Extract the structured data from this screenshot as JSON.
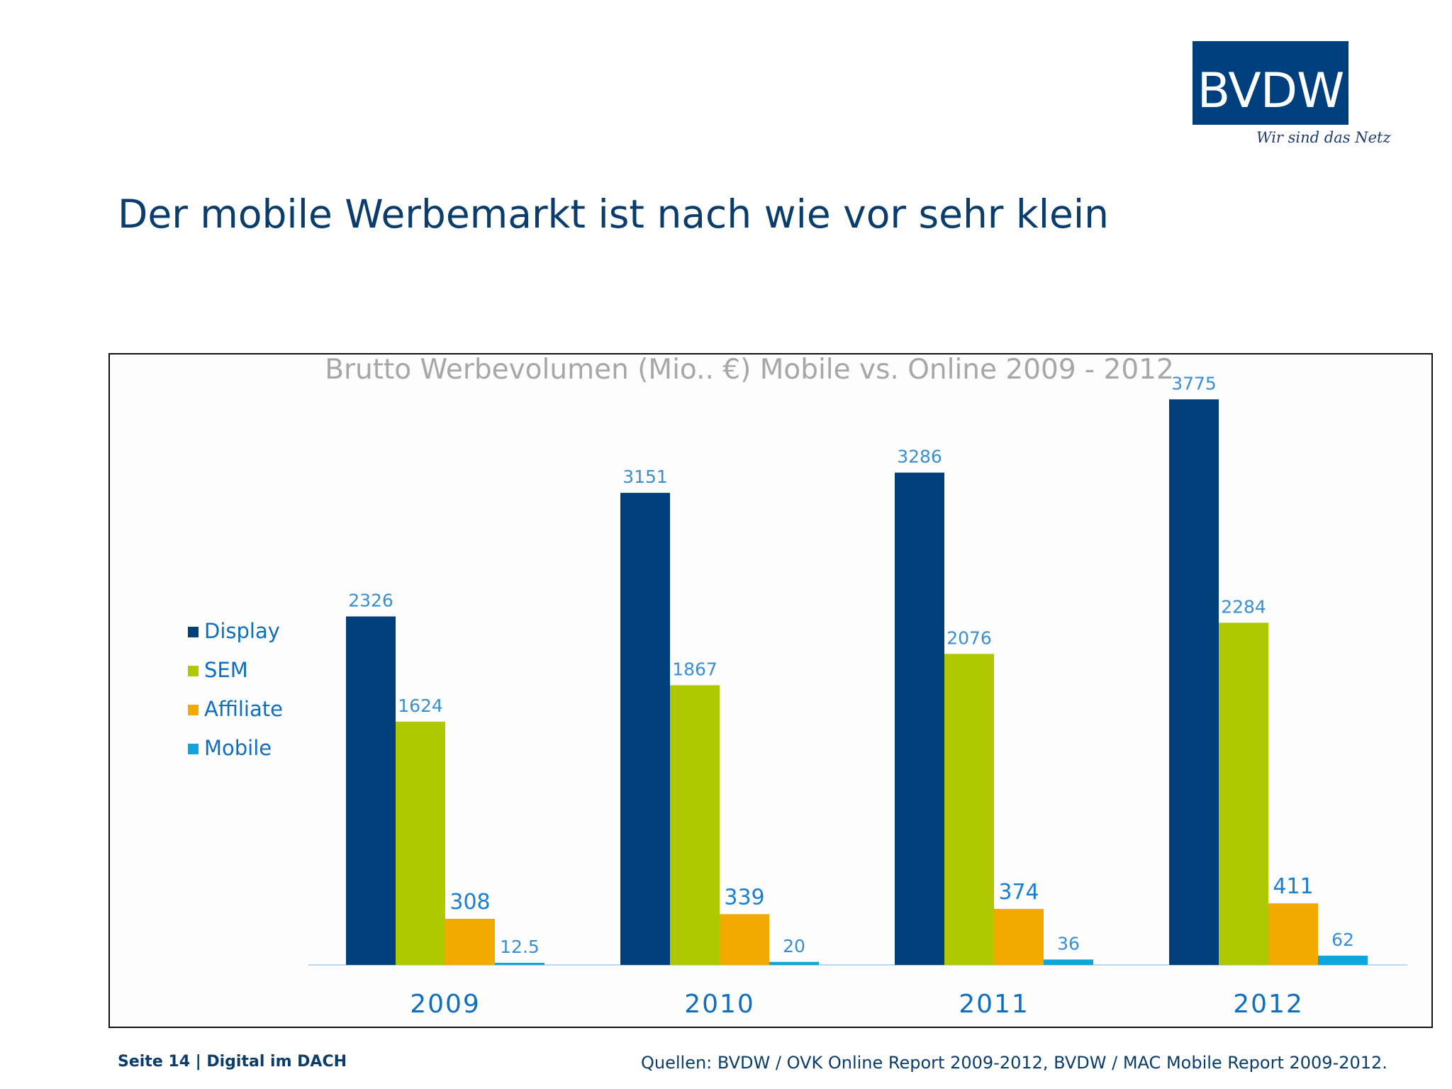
{
  "logo": {
    "text": "BVDW",
    "tagline": "Wir sind das Netz"
  },
  "slide": {
    "title": "Der mobile Werbemarkt ist nach wie vor sehr klein"
  },
  "footer": {
    "page_label": "Seite 14 | Digital im DACH",
    "sources": "Quellen: BVDW / OVK Online Report 2009-2012, BVDW / MAC Mobile Report 2009-2012."
  },
  "chart_data": {
    "type": "bar",
    "title": "Brutto Werbevolumen (Mio.. €) Mobile vs. Online 2009 - 2012",
    "categories": [
      "2009",
      "2010",
      "2011",
      "2012"
    ],
    "series": [
      {
        "name": "Display",
        "values": [
          2326,
          3151,
          3286,
          3775
        ],
        "color": "#003f7a",
        "labels": [
          "2326",
          "3151",
          "3286",
          "3775"
        ]
      },
      {
        "name": "SEM",
        "values": [
          1624,
          1867,
          2076,
          2284
        ],
        "color": "#afc800",
        "labels": [
          "1624",
          "1867",
          "2076",
          "2284"
        ]
      },
      {
        "name": "Affiliate",
        "values": [
          308,
          339,
          374,
          411
        ],
        "color": "#f2a900",
        "labels": [
          "308",
          "339",
          "374",
          "411"
        ]
      },
      {
        "name": "Mobile",
        "values": [
          12.5,
          20,
          36,
          62
        ],
        "color": "#0ea5df",
        "labels": [
          "12.5",
          "20",
          "36",
          "62"
        ]
      }
    ],
    "legend_position": "left",
    "grid": false,
    "xlabel": "",
    "ylabel": "",
    "ylim": [
      0,
      3800
    ],
    "colors": {
      "title": "#a7a7a7",
      "labels": "#3a8fd0",
      "axis_line": "#bcd6ec",
      "category_labels": "#0f6fbf",
      "legend_text": "#0f6fbf"
    }
  }
}
